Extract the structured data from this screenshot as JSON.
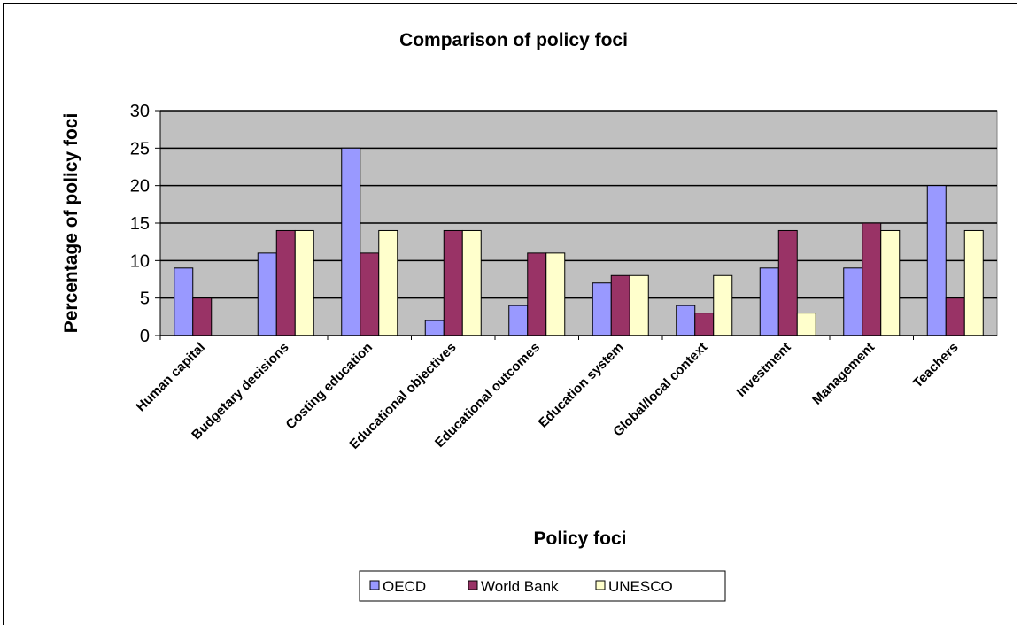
{
  "chart_data": {
    "type": "bar",
    "title": "Comparison of policy foci",
    "xlabel": "Policy foci",
    "ylabel": "Percentage of policy foci",
    "ylim": [
      0,
      30
    ],
    "yticks": [
      0,
      5,
      10,
      15,
      20,
      25,
      30
    ],
    "grid": true,
    "legend_position": "bottom",
    "categories": [
      "Human capital",
      "Budgetary decisions",
      "Costing education",
      "Educational objectives",
      "Educational outcomes",
      "Education system",
      "Global/local context",
      "Investment",
      "Management",
      "Teachers"
    ],
    "series": [
      {
        "name": "OECD",
        "color": "#9999ff",
        "values": [
          9,
          11,
          25,
          2,
          4,
          7,
          4,
          9,
          9,
          20
        ]
      },
      {
        "name": "World Bank",
        "color": "#993366",
        "values": [
          5,
          14,
          11,
          14,
          11,
          8,
          3,
          14,
          15,
          5
        ]
      },
      {
        "name": "UNESCO",
        "color": "#ffffcc",
        "values": [
          0,
          14,
          14,
          14,
          11,
          8,
          8,
          3,
          14,
          14
        ]
      }
    ],
    "plot_background": "#c0c0c0"
  }
}
